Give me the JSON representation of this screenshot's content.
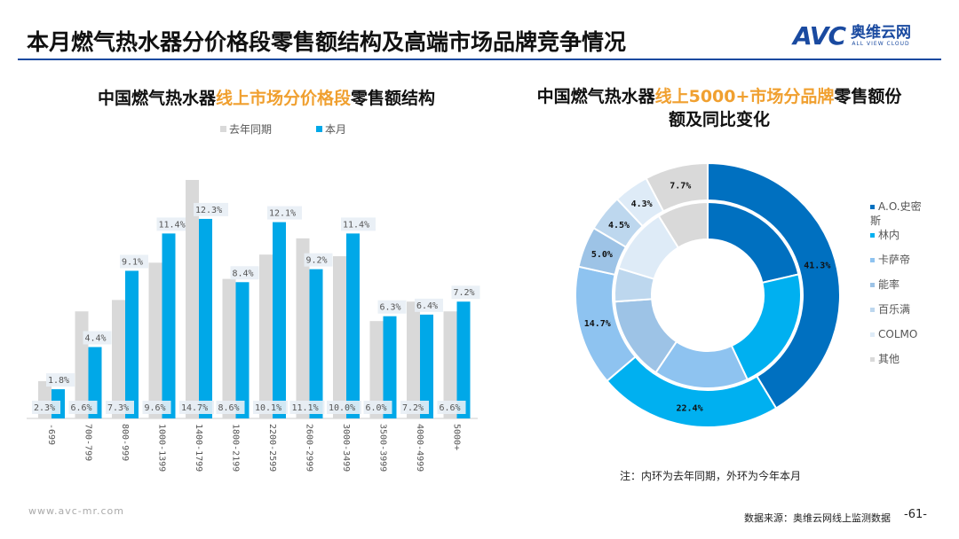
{
  "header": {
    "title": "本月燃气热水器分价格段零售额结构及高端市场品牌竞争情况",
    "logo_text": "AVC",
    "logo_cn": "奥维云网",
    "logo_en": "ALL VIEW CLOUD"
  },
  "chart_data": [
    {
      "type": "bar",
      "title_parts": [
        "中国燃气热水器",
        "线上市场分价格段",
        "零售额结构"
      ],
      "categories": [
        "-699",
        "700-799",
        "800-999",
        "1000-1399",
        "1400-1799",
        "1800-2199",
        "2200-2599",
        "2600-2999",
        "3000-3499",
        "3500-3999",
        "4000-4999",
        "5000+"
      ],
      "series": [
        {
          "name": "去年同期",
          "color": "#d9d9d9",
          "values": [
            2.3,
            6.6,
            7.3,
            9.6,
            14.7,
            8.6,
            10.1,
            11.1,
            10.0,
            6.0,
            7.2,
            6.6
          ],
          "labels": [
            "2.3%",
            "6.6%",
            "7.3%",
            "9.6%",
            "14.7%",
            "8.6%",
            "10.1%",
            "11.1%",
            "10.0%",
            "6.0%",
            "7.2%",
            "6.6%"
          ]
        },
        {
          "name": "本月",
          "color": "#00a8e8",
          "values": [
            1.8,
            4.4,
            9.1,
            11.4,
            12.3,
            8.4,
            12.1,
            9.2,
            11.4,
            6.3,
            6.4,
            7.2
          ],
          "labels": [
            "1.8%",
            "4.4%",
            "9.1%",
            "11.4%",
            "12.3%",
            "8.4%",
            "12.1%",
            "9.2%",
            "11.4%",
            "6.3%",
            "6.4%",
            "7.2%"
          ]
        }
      ],
      "ylim": [
        0,
        15
      ],
      "legend": "top"
    },
    {
      "type": "pie",
      "title_parts": [
        "中国燃气热水器",
        "线上5000+市场分品牌",
        "零售额份额及同比变化"
      ],
      "categories": [
        "A.O.史密斯",
        "林内",
        "卡萨帝",
        "能率",
        "百乐满",
        "COLMO",
        "其他"
      ],
      "colors": [
        "#0070c0",
        "#00b0f0",
        "#8ec3f0",
        "#9dc3e6",
        "#bdd7ee",
        "#deebf7",
        "#d9d9d9"
      ],
      "outer_ring": {
        "name": "本月",
        "values": [
          41.3,
          22.4,
          14.7,
          5.0,
          4.5,
          4.3,
          7.7
        ],
        "labels": [
          "41.3%",
          "22.4%",
          "14.7%",
          "5.0%",
          "4.5%",
          "4.3%",
          "7.7%"
        ]
      },
      "inner_ring": {
        "name": "去年同期",
        "values": [
          21.4,
          21.6,
          16.4,
          14.5,
          5.8,
          11.5,
          8.8
        ]
      },
      "legend": "right",
      "note": "注：内环为去年同期，外环为今年本月"
    }
  ],
  "footer": {
    "url": "www.avc-mr.com",
    "source": "数据来源：奥维云网线上监测数据",
    "page": "-61-"
  }
}
